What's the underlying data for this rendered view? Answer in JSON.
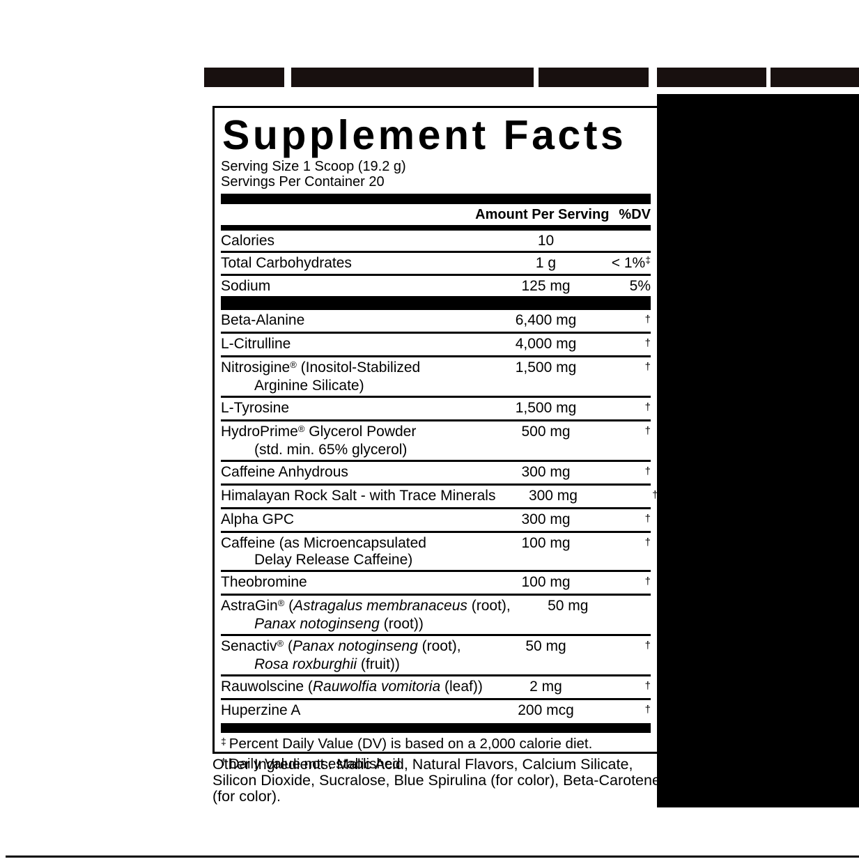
{
  "colors": {
    "ink": "#000000",
    "banner": "#18100f",
    "panel_bg": "#ffffff"
  },
  "supplement_facts": {
    "title": "Supplement Facts",
    "serving_size": "Serving Size 1 Scoop (19.2 g)",
    "servings_per_container": "Servings Per Container 20",
    "columns": {
      "amount": "Amount Per Serving",
      "dv": "%DV"
    },
    "nutrients": [
      {
        "name": "Calories",
        "amount": "10",
        "dv": "",
        "dv_sup": ""
      },
      {
        "name": "Total Carbohydrates",
        "amount": "1 g",
        "dv": "< 1%",
        "dv_sup": "‡"
      },
      {
        "name": "Sodium",
        "amount": "125 mg",
        "dv": "5%",
        "dv_sup": ""
      }
    ],
    "ingredients": [
      {
        "line1": [
          {
            "t": "Beta-Alanine",
            "s": "n"
          }
        ],
        "line2": [],
        "amount": "6,400 mg",
        "dv": "†"
      },
      {
        "line1": [
          {
            "t": "L-Citrulline",
            "s": "n"
          }
        ],
        "line2": [],
        "amount": "4,000 mg",
        "dv": "†"
      },
      {
        "line1": [
          {
            "t": "Nitrosigine",
            "s": "n"
          },
          {
            "t": "®",
            "s": "sup"
          },
          {
            "t": " (Inositol-Stabilized",
            "s": "n"
          }
        ],
        "line2": [
          {
            "t": "Arginine Silicate)",
            "s": "n"
          }
        ],
        "amount": "1,500 mg",
        "dv": "†"
      },
      {
        "line1": [
          {
            "t": "L-Tyrosine",
            "s": "n"
          }
        ],
        "line2": [],
        "amount": "1,500 mg",
        "dv": "†"
      },
      {
        "line1": [
          {
            "t": "HydroPrime",
            "s": "n"
          },
          {
            "t": "®",
            "s": "sup"
          },
          {
            "t": " Glycerol Powder",
            "s": "n"
          }
        ],
        "line2": [
          {
            "t": "(std. min. 65% glycerol)",
            "s": "n"
          }
        ],
        "amount": "500 mg",
        "dv": "†"
      },
      {
        "line1": [
          {
            "t": "Caffeine Anhydrous",
            "s": "n"
          }
        ],
        "line2": [],
        "amount": "300 mg",
        "dv": "†"
      },
      {
        "line1": [
          {
            "t": "Himalayan Rock Salt - with Trace Minerals",
            "s": "n"
          }
        ],
        "line2": [],
        "amount": "300 mg",
        "dv": "†"
      },
      {
        "line1": [
          {
            "t": "Alpha GPC",
            "s": "n"
          }
        ],
        "line2": [],
        "amount": "300 mg",
        "dv": "†"
      },
      {
        "line1": [
          {
            "t": "Caffeine (as Microencapsulated",
            "s": "n"
          }
        ],
        "line2": [
          {
            "t": "Delay Release Caffeine)",
            "s": "n"
          }
        ],
        "amount": "100 mg",
        "dv": "†"
      },
      {
        "line1": [
          {
            "t": "Theobromine",
            "s": "n"
          }
        ],
        "line2": [],
        "amount": "100 mg",
        "dv": "†"
      },
      {
        "line1": [
          {
            "t": "AstraGin",
            "s": "n"
          },
          {
            "t": "®",
            "s": "sup"
          },
          {
            "t": " (",
            "s": "n"
          },
          {
            "t": "Astragalus membranaceus",
            "s": "i"
          },
          {
            "t": " (root),",
            "s": "n"
          }
        ],
        "line2": [
          {
            "t": "Panax notoginseng",
            "s": "i"
          },
          {
            "t": " (root))",
            "s": "n"
          }
        ],
        "amount": "50 mg",
        "dv": "†"
      },
      {
        "line1": [
          {
            "t": "Senactiv",
            "s": "n"
          },
          {
            "t": "®",
            "s": "sup"
          },
          {
            "t": " (",
            "s": "n"
          },
          {
            "t": "Panax notoginseng",
            "s": "i"
          },
          {
            "t": " (root),",
            "s": "n"
          }
        ],
        "line2": [
          {
            "t": "Rosa roxburghii",
            "s": "i"
          },
          {
            "t": " (fruit))",
            "s": "n"
          }
        ],
        "amount": "50 mg",
        "dv": "†"
      },
      {
        "line1": [
          {
            "t": "Rauwolscine (",
            "s": "n"
          },
          {
            "t": "Rauwolfia vomitoria",
            "s": "i"
          },
          {
            "t": " (leaf))",
            "s": "n"
          }
        ],
        "line2": [],
        "amount": "2 mg",
        "dv": "†"
      },
      {
        "line1": [
          {
            "t": "Huperzine A",
            "s": "n"
          }
        ],
        "line2": [],
        "amount": "200 mcg",
        "dv": "†"
      }
    ],
    "footnotes": [
      {
        "sup": "‡",
        "text": "Percent Daily Value (DV) is based on a 2,000 calorie diet."
      },
      {
        "sup": "†",
        "text": "Daily Value not established."
      }
    ]
  },
  "other_ingredients": {
    "lines": [
      "Other Ingredients: Malic Acid, Natural Flavors, Calcium Silicate,",
      "Silicon Dioxide, Sucralose, Blue Spirulina (for color), Beta-Carotene",
      "(for color)."
    ]
  }
}
